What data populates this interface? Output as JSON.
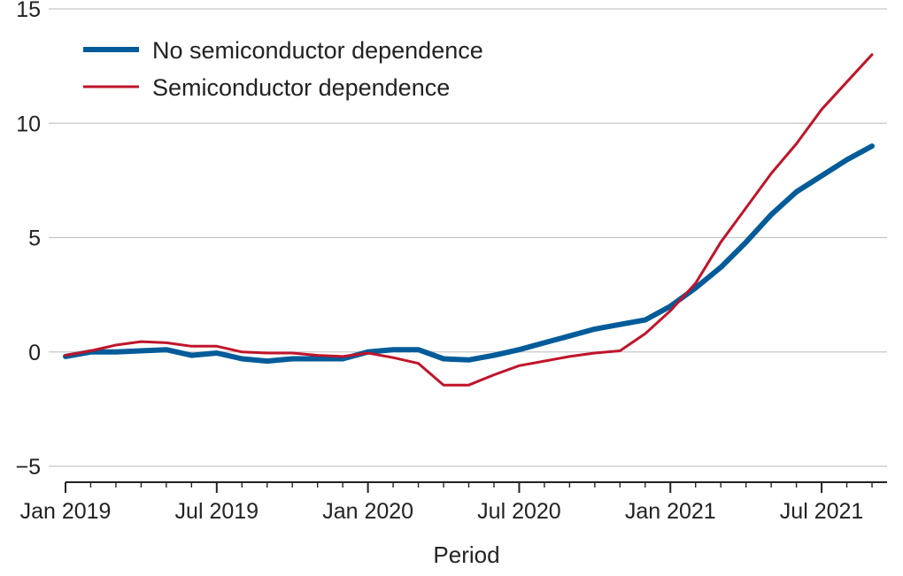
{
  "chart_data": {
    "type": "line",
    "xlabel": "Period",
    "ylabel": "",
    "x_ticks": [
      "Jan 2019",
      "Jul 2019",
      "Jan 2020",
      "Jul 2020",
      "Jan 2021",
      "Jul 2021"
    ],
    "x_tick_positions": [
      0,
      6,
      12,
      18,
      24,
      30
    ],
    "x_range": [
      0,
      32
    ],
    "ylim": [
      -5,
      15
    ],
    "y_ticks": [
      -5,
      0,
      5,
      10,
      15
    ],
    "y_tick_labels": [
      "−5",
      "0",
      "5",
      "10",
      "15"
    ],
    "grid": "horizontal",
    "legend_position": "top-left",
    "series": [
      {
        "name": "No semiconductor dependence",
        "color": "#005b99",
        "x": [
          0,
          1,
          2,
          3,
          4,
          5,
          6,
          7,
          8,
          9,
          10,
          11,
          12,
          13,
          14,
          15,
          16,
          17,
          18,
          19,
          20,
          21,
          22,
          23,
          24,
          25,
          26,
          27,
          28,
          29,
          30,
          31,
          32
        ],
        "values": [
          -0.2,
          0.0,
          0.0,
          0.05,
          0.1,
          -0.15,
          -0.05,
          -0.3,
          -0.4,
          -0.3,
          -0.3,
          -0.3,
          0.0,
          0.1,
          0.1,
          -0.3,
          -0.35,
          -0.15,
          0.1,
          0.4,
          0.7,
          1.0,
          1.2,
          1.4,
          2.0,
          2.8,
          3.7,
          4.8,
          6.0,
          7.0,
          7.7,
          8.4,
          9.0
        ]
      },
      {
        "name": "Semiconductor dependence",
        "color": "#c0142a",
        "x": [
          0,
          1,
          2,
          3,
          4,
          5,
          6,
          7,
          8,
          9,
          10,
          11,
          12,
          13,
          14,
          15,
          16,
          17,
          18,
          19,
          20,
          21,
          22,
          23,
          24,
          25,
          26,
          27,
          28,
          29,
          30,
          31,
          32
        ],
        "values": [
          -0.15,
          0.05,
          0.3,
          0.45,
          0.4,
          0.25,
          0.25,
          0.0,
          -0.05,
          -0.05,
          -0.15,
          -0.2,
          -0.05,
          -0.25,
          -0.5,
          -1.45,
          -1.45,
          -1.0,
          -0.6,
          -0.4,
          -0.2,
          -0.05,
          0.05,
          0.8,
          1.8,
          3.0,
          4.8,
          6.3,
          7.8,
          9.1,
          10.6,
          11.8,
          13.0
        ]
      }
    ]
  }
}
